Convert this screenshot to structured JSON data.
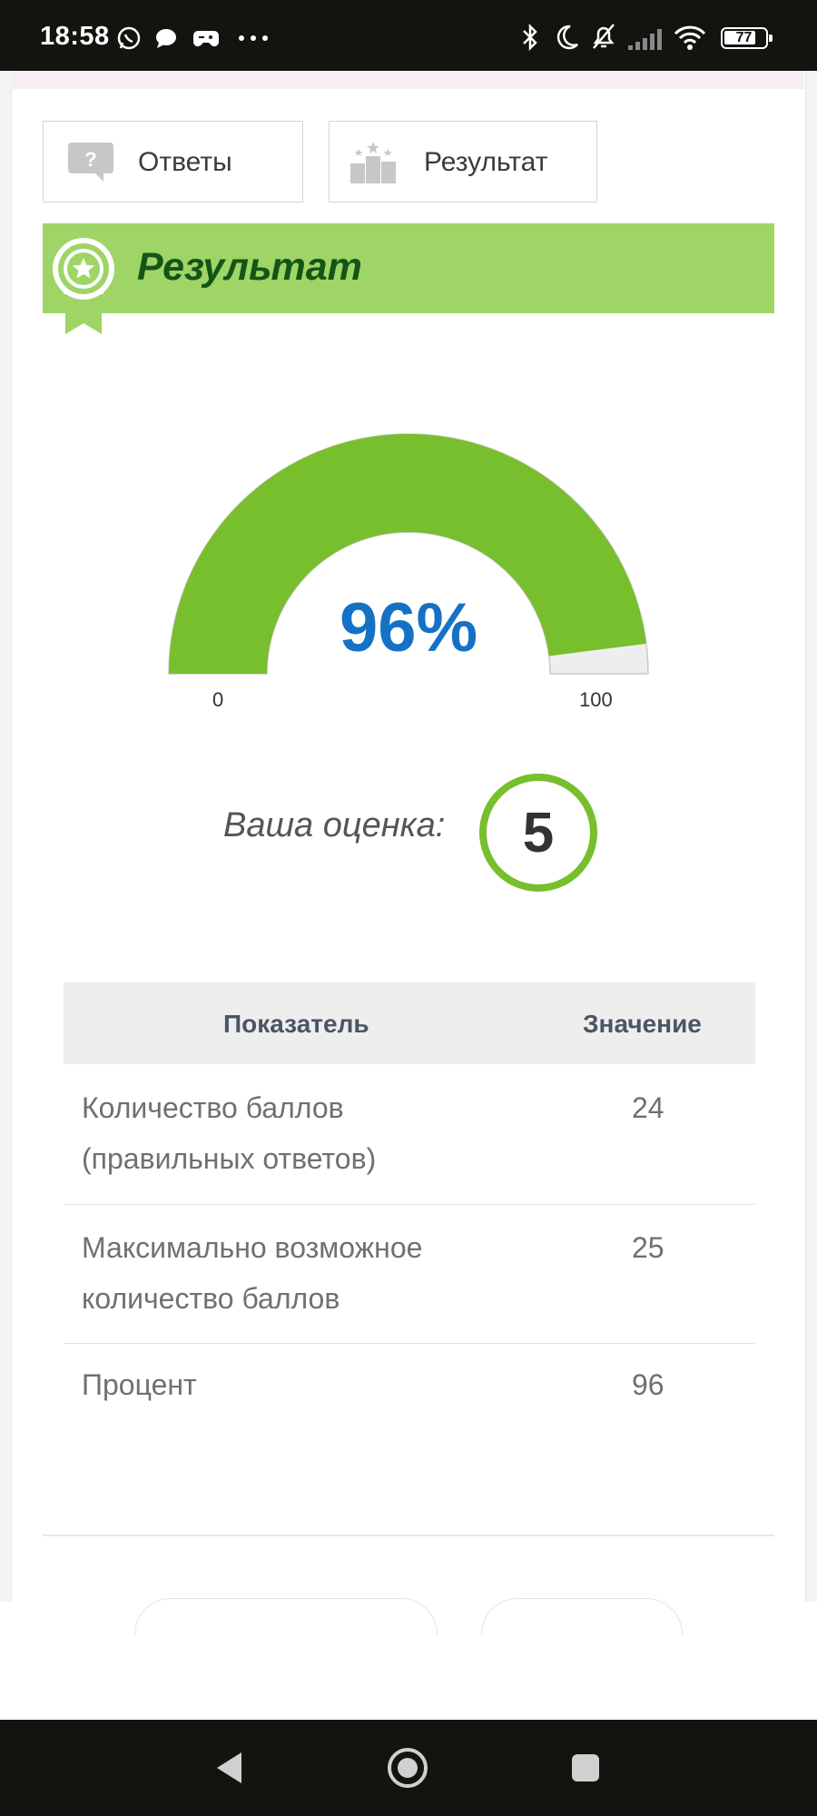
{
  "status_bar": {
    "time": "18:58",
    "battery": "77",
    "icons": [
      "whatsapp-icon",
      "chat-icon",
      "gamepad-icon",
      "more-icon",
      "bluetooth-icon",
      "moon-icon",
      "bell-off-icon",
      "signal-icon",
      "wifi-icon",
      "battery-icon"
    ]
  },
  "tabs": [
    {
      "label": "Ответы",
      "icon": "question-bubble-icon"
    },
    {
      "label": "Результат",
      "icon": "podium-icon"
    }
  ],
  "result_banner": {
    "title": "Результат",
    "icon": "award-badge-icon",
    "color": "#9fd466"
  },
  "gauge": {
    "percent": 96,
    "display": "96%",
    "min_label": "0",
    "max_label": "100",
    "fill_color": "#77bf2c",
    "track_color": "#eeeeee"
  },
  "grade": {
    "label": "Ваша оценка:",
    "value": "5",
    "ring_color": "#77bf2c"
  },
  "results_table": {
    "headers": [
      "Показатель",
      "Значение"
    ],
    "rows": [
      {
        "indicator": "Количество баллов (правильных ответов)",
        "value": "24"
      },
      {
        "indicator": "Максимально возможное количество баллов",
        "value": "25"
      },
      {
        "indicator": "Процент",
        "value": "96"
      }
    ]
  },
  "nav_bar": {
    "icons": [
      "back-icon",
      "home-icon",
      "recents-icon"
    ]
  }
}
